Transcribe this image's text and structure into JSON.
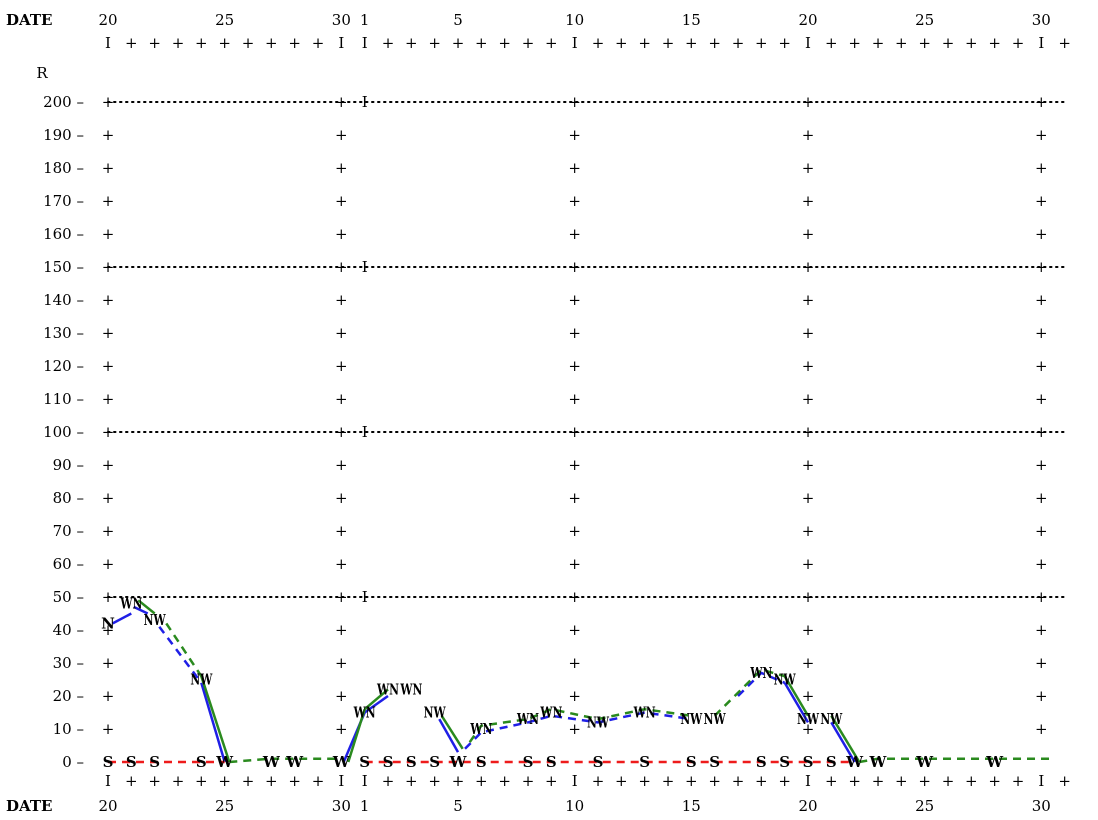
{
  "chart_data": {
    "type": "line",
    "header_label": "DATE",
    "footer_label": "DATE",
    "y_axis_label": "R",
    "date_labels": [
      {
        "day": 20,
        "text": "20"
      },
      {
        "day": 25,
        "text": "25"
      },
      {
        "day": 30,
        "text": "30"
      },
      {
        "day": 31,
        "text": "1"
      },
      {
        "day": 35,
        "text": "5"
      },
      {
        "day": 40,
        "text": "10"
      },
      {
        "day": 45,
        "text": "15"
      },
      {
        "day": 50,
        "text": "20"
      },
      {
        "day": 55,
        "text": "25"
      },
      {
        "day": 60,
        "text": "30"
      }
    ],
    "major_days": [
      20,
      30,
      31,
      40,
      50,
      60
    ],
    "x_range": [
      20,
      60
    ],
    "y_ticks": [
      0,
      10,
      20,
      30,
      40,
      50,
      60,
      70,
      80,
      90,
      100,
      110,
      120,
      130,
      140,
      150,
      160,
      170,
      180,
      190,
      200
    ],
    "y_range": [
      0,
      200
    ],
    "dotted_levels": [
      50,
      100,
      150,
      200
    ],
    "markers": [
      {
        "day": 20,
        "value": 42,
        "text": "N"
      },
      {
        "day": 21,
        "value": 48,
        "text": "WN"
      },
      {
        "day": 22,
        "value": 43,
        "text": "NW"
      },
      {
        "day": 24,
        "value": 25,
        "text": "NW"
      },
      {
        "day": 25,
        "value": 0,
        "text": "W"
      },
      {
        "day": 27,
        "value": 0,
        "text": "W"
      },
      {
        "day": 28,
        "value": 0,
        "text": "W"
      },
      {
        "day": 30,
        "value": 0,
        "text": "W"
      },
      {
        "day": 31,
        "value": 15,
        "text": "WN"
      },
      {
        "day": 32,
        "value": 22,
        "text": "WN"
      },
      {
        "day": 33,
        "value": 22,
        "text": "WN"
      },
      {
        "day": 34,
        "value": 15,
        "text": "NW"
      },
      {
        "day": 35,
        "value": 0,
        "text": "W"
      },
      {
        "day": 36,
        "value": 10,
        "text": "WN"
      },
      {
        "day": 38,
        "value": 13,
        "text": "WN"
      },
      {
        "day": 39,
        "value": 15,
        "text": "WN"
      },
      {
        "day": 41,
        "value": 12,
        "text": "NW"
      },
      {
        "day": 43,
        "value": 15,
        "text": "WN"
      },
      {
        "day": 45,
        "value": 13,
        "text": "NW"
      },
      {
        "day": 46,
        "value": 13,
        "text": "NW"
      },
      {
        "day": 48,
        "value": 27,
        "text": "WN"
      },
      {
        "day": 49,
        "value": 25,
        "text": "NW"
      },
      {
        "day": 50,
        "value": 13,
        "text": "NW"
      },
      {
        "day": 51,
        "value": 13,
        "text": "NW"
      },
      {
        "day": 52,
        "value": 0,
        "text": "W"
      },
      {
        "day": 53,
        "value": 0,
        "text": "W"
      },
      {
        "day": 55,
        "value": 0,
        "text": "W"
      },
      {
        "day": 58,
        "value": 0,
        "text": "W"
      },
      {
        "day": 20,
        "value": 0,
        "text": "S"
      },
      {
        "day": 21,
        "value": 0,
        "text": "S"
      },
      {
        "day": 22,
        "value": 0,
        "text": "S"
      },
      {
        "day": 24,
        "value": 0,
        "text": "S"
      },
      {
        "day": 31,
        "value": 0,
        "text": "S"
      },
      {
        "day": 32,
        "value": 0,
        "text": "S"
      },
      {
        "day": 33,
        "value": 0,
        "text": "S"
      },
      {
        "day": 34,
        "value": 0,
        "text": "S"
      },
      {
        "day": 36,
        "value": 0,
        "text": "S"
      },
      {
        "day": 38,
        "value": 0,
        "text": "S"
      },
      {
        "day": 39,
        "value": 0,
        "text": "S"
      },
      {
        "day": 41,
        "value": 0,
        "text": "S"
      },
      {
        "day": 43,
        "value": 0,
        "text": "S"
      },
      {
        "day": 45,
        "value": 0,
        "text": "S"
      },
      {
        "day": 46,
        "value": 0,
        "text": "S"
      },
      {
        "day": 48,
        "value": 0,
        "text": "S"
      },
      {
        "day": 49,
        "value": 0,
        "text": "S"
      },
      {
        "day": 50,
        "value": 0,
        "text": "S"
      },
      {
        "day": 51,
        "value": 0,
        "text": "S"
      }
    ],
    "series": [
      {
        "color": "#1f1fe6",
        "segments": [
          {
            "dashed": false,
            "points": [
              [
                20.2,
                42
              ],
              [
                21,
                45
              ]
            ]
          },
          {
            "dashed": false,
            "points": [
              [
                21.1,
                47
              ],
              [
                21.7,
                45
              ]
            ]
          },
          {
            "dashed": true,
            "points": [
              [
                22.2,
                41
              ],
              [
                24,
                24
              ]
            ]
          },
          {
            "dashed": false,
            "points": [
              [
                24,
                24
              ],
              [
                25,
                0
              ]
            ]
          },
          {
            "dashed": false,
            "points": [
              [
                30.1,
                0
              ],
              [
                31,
                15
              ]
            ]
          },
          {
            "dashed": false,
            "points": [
              [
                31,
                15
              ],
              [
                32,
                20
              ]
            ]
          },
          {
            "dashed": false,
            "points": [
              [
                34.2,
                13
              ],
              [
                35,
                3
              ]
            ]
          },
          {
            "dashed": true,
            "points": [
              [
                35.3,
                4
              ],
              [
                36,
                9
              ],
              [
                38,
                12
              ],
              [
                39,
                14
              ],
              [
                41,
                12
              ],
              [
                43,
                15
              ],
              [
                45,
                13
              ]
            ]
          },
          {
            "dashed": true,
            "points": [
              [
                47,
                20
              ],
              [
                48,
                27
              ],
              [
                49,
                24
              ]
            ]
          },
          {
            "dashed": false,
            "points": [
              [
                49,
                24
              ],
              [
                50,
                12
              ]
            ]
          },
          {
            "dashed": false,
            "points": [
              [
                51,
                12
              ],
              [
                52,
                0
              ]
            ]
          }
        ]
      },
      {
        "color": "#2a8a1e",
        "segments": [
          {
            "dashed": false,
            "points": [
              [
                21.3,
                49
              ],
              [
                22,
                45
              ]
            ]
          },
          {
            "dashed": true,
            "points": [
              [
                22.5,
                42
              ],
              [
                24,
                26
              ]
            ]
          },
          {
            "dashed": false,
            "points": [
              [
                24,
                26
              ],
              [
                25.2,
                0
              ]
            ]
          },
          {
            "dashed": true,
            "points": [
              [
                25.2,
                0
              ],
              [
                27,
                1
              ],
              [
                28,
                1
              ],
              [
                30,
                1
              ]
            ]
          },
          {
            "dashed": false,
            "points": [
              [
                30.3,
                0
              ],
              [
                31,
                16
              ]
            ]
          },
          {
            "dashed": false,
            "points": [
              [
                31,
                16
              ],
              [
                32,
                22
              ]
            ]
          },
          {
            "dashed": false,
            "points": [
              [
                34.3,
                14
              ],
              [
                35.2,
                4
              ]
            ]
          },
          {
            "dashed": true,
            "points": [
              [
                35.5,
                6
              ],
              [
                36,
                11
              ],
              [
                38,
                13
              ],
              [
                39,
                16
              ],
              [
                41,
                13
              ],
              [
                43,
                16
              ],
              [
                45,
                14
              ]
            ]
          },
          {
            "dashed": true,
            "points": [
              [
                46,
                14
              ],
              [
                48,
                28
              ],
              [
                49,
                26
              ]
            ]
          },
          {
            "dashed": false,
            "points": [
              [
                49,
                26
              ],
              [
                50,
                14
              ]
            ]
          },
          {
            "dashed": false,
            "points": [
              [
                51,
                14
              ],
              [
                52.2,
                0
              ]
            ]
          },
          {
            "dashed": true,
            "points": [
              [
                52.2,
                0
              ],
              [
                53,
                1
              ],
              [
                55,
                1
              ],
              [
                58,
                1
              ],
              [
                60.5,
                1
              ]
            ]
          }
        ]
      },
      {
        "color": "#ee1b1b",
        "segments": [
          {
            "dashed": true,
            "points": [
              [
                20,
                0
              ],
              [
                21,
                0
              ],
              [
                22,
                0
              ],
              [
                24,
                0
              ],
              [
                25,
                0
              ]
            ]
          },
          {
            "dashed": true,
            "points": [
              [
                31,
                0
              ],
              [
                32,
                0
              ],
              [
                33,
                0
              ],
              [
                34,
                0
              ],
              [
                35,
                0
              ],
              [
                36,
                0
              ],
              [
                38,
                0
              ],
              [
                39,
                0
              ],
              [
                41,
                0
              ],
              [
                43,
                0
              ],
              [
                45,
                0
              ],
              [
                46,
                0
              ],
              [
                48,
                0
              ],
              [
                49,
                0
              ],
              [
                50,
                0
              ],
              [
                51,
                0
              ],
              [
                52,
                0
              ]
            ]
          }
        ]
      }
    ]
  }
}
